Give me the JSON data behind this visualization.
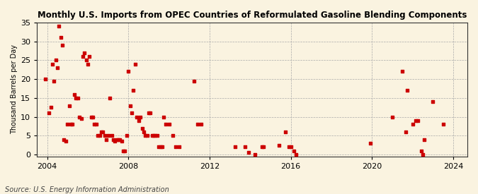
{
  "title": "Monthly U.S. Imports from OPEC Countries of Reformulated Gasoline Blending Components",
  "ylabel": "Thousand Barrels per Day",
  "source": "Source: U.S. Energy Information Administration",
  "background_color": "#faf3e0",
  "marker_color": "#cc0000",
  "marker_size": 12,
  "xlim": [
    2003.5,
    2024.7
  ],
  "ylim": [
    -0.5,
    35
  ],
  "yticks": [
    0,
    5,
    10,
    15,
    20,
    25,
    30,
    35
  ],
  "xticks": [
    2004,
    2008,
    2012,
    2016,
    2020,
    2024
  ],
  "points": [
    [
      2003.92,
      20.0
    ],
    [
      2004.08,
      11.0
    ],
    [
      2004.17,
      12.5
    ],
    [
      2004.25,
      24.0
    ],
    [
      2004.33,
      19.5
    ],
    [
      2004.42,
      25.0
    ],
    [
      2004.5,
      23.0
    ],
    [
      2004.58,
      34.0
    ],
    [
      2004.67,
      31.0
    ],
    [
      2004.75,
      29.0
    ],
    [
      2004.83,
      4.0
    ],
    [
      2004.92,
      3.5
    ],
    [
      2005.0,
      8.0
    ],
    [
      2005.08,
      13.0
    ],
    [
      2005.17,
      8.0
    ],
    [
      2005.25,
      8.0
    ],
    [
      2005.33,
      16.0
    ],
    [
      2005.42,
      15.0
    ],
    [
      2005.5,
      15.0
    ],
    [
      2005.58,
      10.0
    ],
    [
      2005.67,
      9.5
    ],
    [
      2005.75,
      26.0
    ],
    [
      2005.83,
      27.0
    ],
    [
      2005.92,
      25.0
    ],
    [
      2006.0,
      24.0
    ],
    [
      2006.08,
      26.0
    ],
    [
      2006.17,
      10.0
    ],
    [
      2006.25,
      10.0
    ],
    [
      2006.33,
      8.0
    ],
    [
      2006.42,
      8.0
    ],
    [
      2006.5,
      5.0
    ],
    [
      2006.58,
      5.0
    ],
    [
      2006.67,
      6.0
    ],
    [
      2006.75,
      6.0
    ],
    [
      2006.83,
      5.0
    ],
    [
      2006.92,
      4.0
    ],
    [
      2007.0,
      5.0
    ],
    [
      2007.08,
      15.0
    ],
    [
      2007.17,
      5.0
    ],
    [
      2007.25,
      4.0
    ],
    [
      2007.33,
      3.5
    ],
    [
      2007.42,
      4.0
    ],
    [
      2007.5,
      4.0
    ],
    [
      2007.58,
      4.0
    ],
    [
      2007.67,
      3.5
    ],
    [
      2007.75,
      1.0
    ],
    [
      2007.83,
      1.0
    ],
    [
      2007.92,
      5.0
    ],
    [
      2008.0,
      22.0
    ],
    [
      2008.08,
      13.0
    ],
    [
      2008.17,
      11.0
    ],
    [
      2008.25,
      17.0
    ],
    [
      2008.33,
      24.0
    ],
    [
      2008.42,
      10.0
    ],
    [
      2008.5,
      9.0
    ],
    [
      2008.58,
      10.0
    ],
    [
      2008.67,
      7.0
    ],
    [
      2008.75,
      6.0
    ],
    [
      2008.83,
      5.0
    ],
    [
      2008.92,
      5.0
    ],
    [
      2009.0,
      11.0
    ],
    [
      2009.08,
      11.0
    ],
    [
      2009.17,
      5.0
    ],
    [
      2009.25,
      5.0
    ],
    [
      2009.33,
      5.0
    ],
    [
      2009.42,
      5.0
    ],
    [
      2009.5,
      2.0
    ],
    [
      2009.58,
      2.0
    ],
    [
      2009.67,
      2.0
    ],
    [
      2009.75,
      10.0
    ],
    [
      2009.83,
      8.0
    ],
    [
      2010.0,
      8.0
    ],
    [
      2010.17,
      5.0
    ],
    [
      2010.33,
      2.0
    ],
    [
      2010.5,
      2.0
    ],
    [
      2011.25,
      19.5
    ],
    [
      2011.42,
      8.0
    ],
    [
      2011.58,
      8.0
    ],
    [
      2013.25,
      2.0
    ],
    [
      2013.75,
      2.0
    ],
    [
      2013.92,
      0.5
    ],
    [
      2014.25,
      0.0
    ],
    [
      2014.58,
      2.0
    ],
    [
      2014.67,
      2.0
    ],
    [
      2015.42,
      2.5
    ],
    [
      2015.75,
      6.0
    ],
    [
      2015.92,
      2.0
    ],
    [
      2016.0,
      2.0
    ],
    [
      2016.17,
      1.0
    ],
    [
      2016.25,
      0.0
    ],
    [
      2019.92,
      3.0
    ],
    [
      2021.0,
      10.0
    ],
    [
      2021.5,
      22.0
    ],
    [
      2021.67,
      6.0
    ],
    [
      2021.75,
      17.0
    ],
    [
      2022.0,
      8.0
    ],
    [
      2022.17,
      9.0
    ],
    [
      2022.25,
      9.0
    ],
    [
      2022.42,
      1.0
    ],
    [
      2022.5,
      0.0
    ],
    [
      2022.58,
      4.0
    ],
    [
      2023.0,
      14.0
    ],
    [
      2023.5,
      8.0
    ]
  ]
}
